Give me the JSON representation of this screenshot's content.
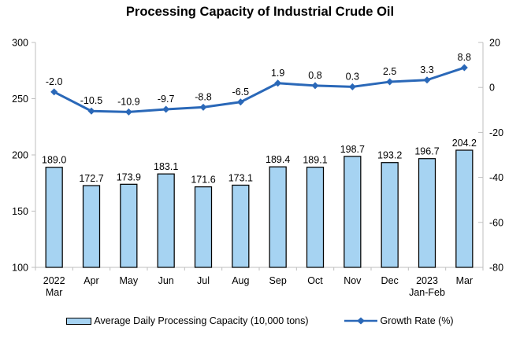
{
  "title": "Processing Capacity of Industrial Crude Oil",
  "colors": {
    "background": "#ffffff",
    "bar_fill": "#a6d3f2",
    "bar_border": "#000000",
    "line": "#2a68b8",
    "axis": "#bfbfbf",
    "text": "#000000"
  },
  "legend": {
    "bar_label": "Average Daily Processing Capacity (10,000 tons)",
    "line_label": "Growth Rate (%)"
  },
  "chart_data": {
    "type": "bar+line combo",
    "title": "Processing Capacity of Industrial Crude Oil",
    "categories": [
      "2022\nMar",
      "Apr",
      "May",
      "Jun",
      "Jul",
      "Aug",
      "Sep",
      "Oct",
      "Nov",
      "Dec",
      "2023\nJan-Feb",
      "Mar"
    ],
    "series": [
      {
        "name": "Average Daily Processing Capacity (10,000 tons)",
        "type": "bar",
        "axis": "left",
        "values": [
          189.0,
          172.7,
          173.9,
          183.1,
          171.6,
          173.1,
          189.4,
          189.1,
          198.7,
          193.2,
          196.7,
          204.2
        ]
      },
      {
        "name": "Growth Rate (%)",
        "type": "line",
        "axis": "right",
        "values": [
          -2.0,
          -10.5,
          -10.9,
          -9.7,
          -8.8,
          -6.5,
          1.9,
          0.8,
          0.3,
          2.5,
          3.3,
          8.8
        ]
      }
    ],
    "left_axis": {
      "min": 100,
      "max": 300,
      "ticks": [
        100,
        150,
        200,
        250,
        300
      ]
    },
    "right_axis": {
      "min": -80,
      "max": 20,
      "ticks": [
        -80,
        -60,
        -40,
        -20,
        0,
        20
      ]
    },
    "grid": false,
    "data_labels": true,
    "data_label_decimals": 1,
    "legend_position": "bottom"
  }
}
